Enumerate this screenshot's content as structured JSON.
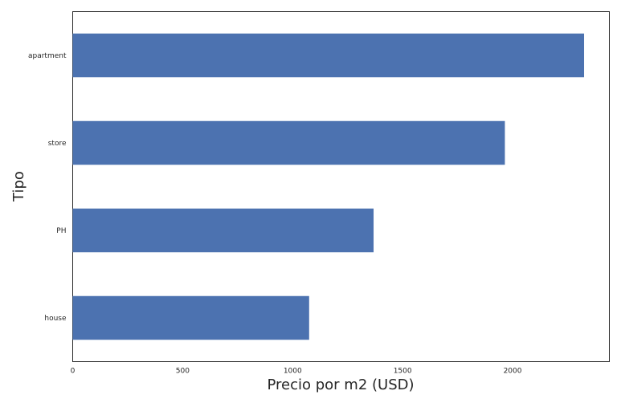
{
  "chart_data": {
    "type": "bar",
    "orientation": "horizontal",
    "title": "",
    "xlabel": "Precio por m2 (USD)",
    "ylabel": "Tipo",
    "categories": [
      "apartment",
      "store",
      "PH",
      "house"
    ],
    "values": [
      2325,
      1965,
      1368,
      1075
    ],
    "xlim": [
      0,
      2440
    ],
    "xticks": [
      0,
      500,
      1000,
      1500,
      2000
    ],
    "xtick_labels": [
      "0",
      "500",
      "1000",
      "1500",
      "2000"
    ],
    "grid": false,
    "legend": "none",
    "bar_color": "#4c72b0"
  }
}
